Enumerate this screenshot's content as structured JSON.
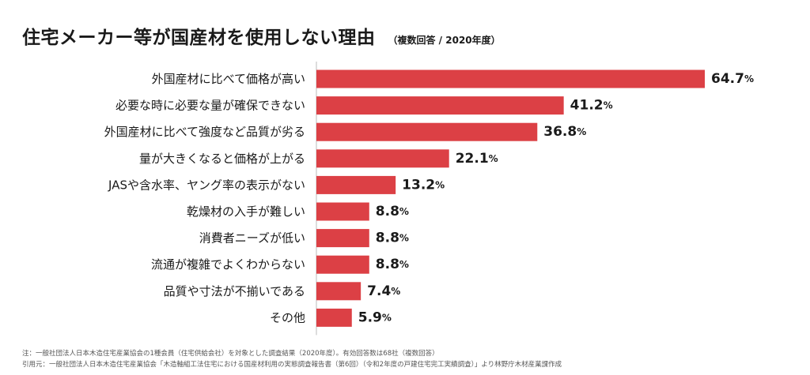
{
  "title": "住宅メーカー等が国産材を使用しない理由",
  "subtitle": "（複数回答 / 2020年度）",
  "notes": {
    "note1": "注：一般社団法人日本木造住宅産業協会の1種会員（住宅供給会社）を対象とした調査結果（2020年度）。有効回答数は68社（複数回答）",
    "note2": "引用元：一般社団法人日本木造住宅産業協会「木造軸組工法住宅における国産材利用の実態調査報告書（第6回）（令和2年度の戸建住宅完工実績調査）」より林野庁木材産業課作成"
  },
  "chart_data": {
    "type": "bar",
    "orientation": "horizontal",
    "categories": [
      "外国産材に比べて価格が高い",
      "必要な時に必要な量が確保できない",
      "外国産材に比べて強度など品質が劣る",
      "量が大きくなると価格が上がる",
      "JASや含水率、ヤング率の表示がない",
      "乾燥材の入手が難しい",
      "消費者ニーズが低い",
      "流通が複雑でよくわからない",
      "品質や寸法が不揃いである",
      "その他"
    ],
    "values": [
      64.7,
      41.2,
      36.8,
      22.1,
      13.2,
      8.8,
      8.8,
      8.8,
      7.4,
      5.9
    ],
    "value_labels": [
      "64.7",
      "41.2",
      "36.8",
      "22.1",
      "13.2",
      "8.8",
      "8.8",
      "8.8",
      "7.4",
      "5.9"
    ],
    "unit": "%",
    "bar_color": "#dc4045",
    "axis_color": "#bbbbbb",
    "grid": false,
    "legend": "none"
  }
}
